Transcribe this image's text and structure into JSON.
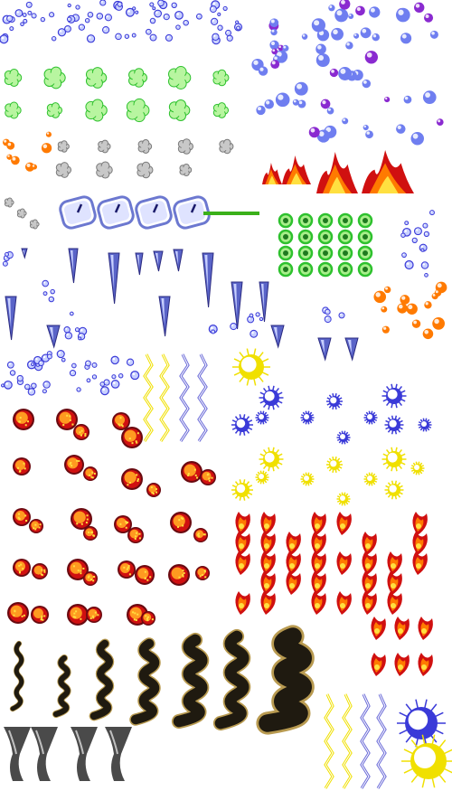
{
  "sheet": {
    "title": "",
    "background": "#ffffff",
    "palette": {
      "bubble_blue": "#3a3ad8",
      "bubble_light": "#c8d0ff",
      "bubble_purple": "#8a2ad0",
      "green": "#2ec12e",
      "green_light": "#b8f5a0",
      "gray": "#7a7a7a",
      "fire_red": "#d01010",
      "fire_orange": "#ff7a00",
      "fire_yellow": "#ffe040",
      "lightning_yellow": "#f0e000",
      "lightning_blue": "#6a6ad8",
      "clock_blue": "#6c78d0",
      "icicle_blue": "#5a64c8",
      "bar_green": "#3ab01a",
      "explosion_dark": "#6a0a10",
      "explosion_orange": "#ff9a20",
      "vine_dark": "#1f1a10",
      "vine_tan": "#b89a50",
      "tornado_gray": "#4a4a4a"
    },
    "sprite_groups": [
      {
        "name": "blue-bubble-clusters",
        "icon": "bubble-cluster-icon"
      },
      {
        "name": "purple-blue-orbs",
        "icon": "orb-icon"
      },
      {
        "name": "green-clouds",
        "icon": "poison-cloud-icon"
      },
      {
        "name": "fire-sparks",
        "icon": "spark-icon"
      },
      {
        "name": "smoke-puffs",
        "icon": "smoke-icon"
      },
      {
        "name": "flames",
        "icon": "flame-icon"
      },
      {
        "name": "clocks",
        "icon": "clock-icon"
      },
      {
        "name": "green-bar",
        "icon": "bar-icon"
      },
      {
        "name": "green-rings",
        "icon": "ring-icon"
      },
      {
        "name": "icicles",
        "icon": "icicle-icon"
      },
      {
        "name": "lightning-bolts",
        "icon": "lightning-icon"
      },
      {
        "name": "sun-orbs",
        "icon": "sun-icon"
      },
      {
        "name": "spiky-orbs",
        "icon": "spiky-orb-icon"
      },
      {
        "name": "explosion-balls",
        "icon": "explosion-icon"
      },
      {
        "name": "fire-bursts",
        "icon": "fire-burst-icon"
      },
      {
        "name": "vine-walls",
        "icon": "vine-icon"
      },
      {
        "name": "tornadoes",
        "icon": "tornado-icon"
      }
    ]
  }
}
